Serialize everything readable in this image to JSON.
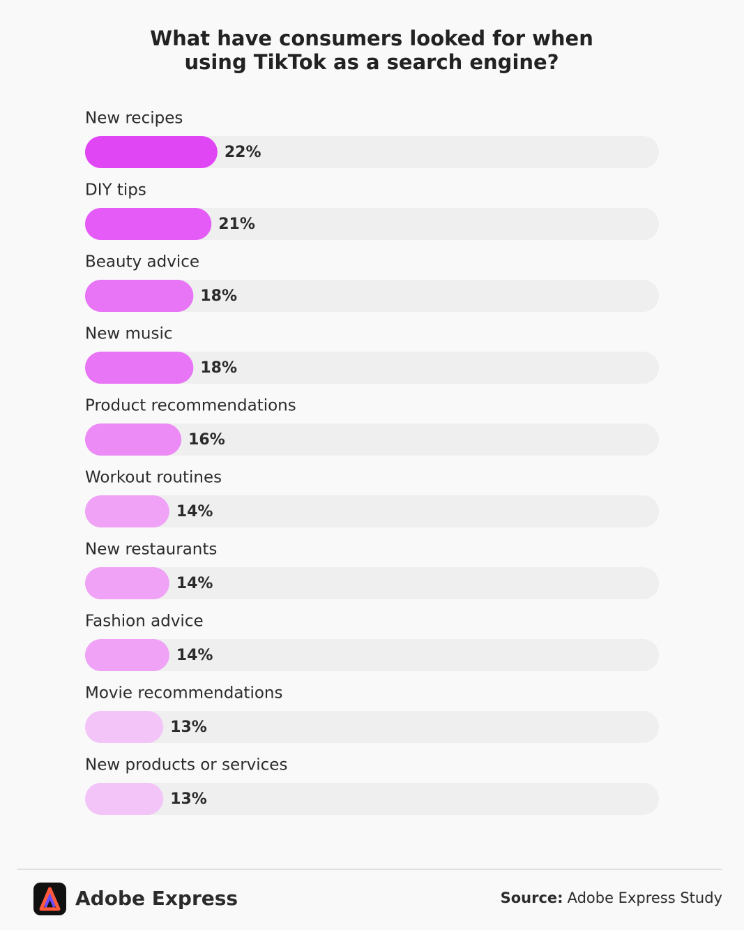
{
  "chart_data": {
    "type": "hbar",
    "title": "What have consumers looked for when using TikTok as a search engine?",
    "categories": [
      "New recipes",
      "DIY tips",
      "Beauty advice",
      "New music",
      "Product recommendations",
      "Workout routines",
      "New restaurants",
      "Fashion advice",
      "Movie recommendations",
      "New products or services"
    ],
    "values": [
      22,
      21,
      18,
      18,
      16,
      14,
      14,
      14,
      13,
      13
    ],
    "value_labels": [
      "22%",
      "21%",
      "18%",
      "18%",
      "16%",
      "14%",
      "14%",
      "14%",
      "13%",
      "13%"
    ],
    "colors": [
      "#e146f5",
      "#e55bf7",
      "#e874f6",
      "#e874f6",
      "#ec8af6",
      "#efa2f6",
      "#efa2f6",
      "#efa2f6",
      "#f3c4f8",
      "#f3c4f8"
    ]
  },
  "footer": {
    "brand": "Adobe Express",
    "source_label": "Source:",
    "source": "Adobe Express Study"
  }
}
